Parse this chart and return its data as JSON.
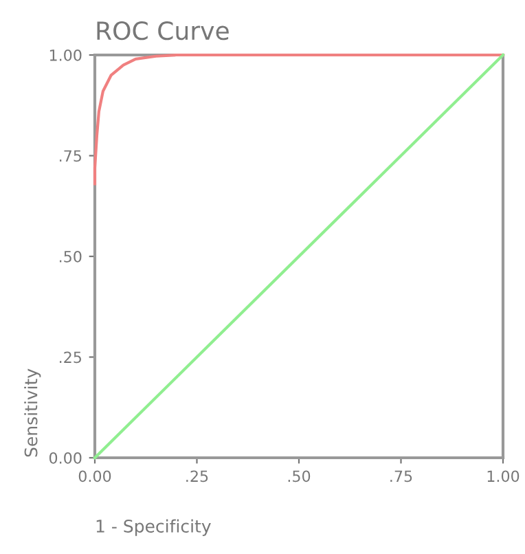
{
  "chart_data": {
    "type": "line",
    "title": "ROC Curve",
    "xlabel": "1 - Specificity",
    "ylabel": "Sensitivity",
    "series": [
      {
        "color": "#f08080",
        "x": [
          0,
          0,
          0.005,
          0.01,
          0.02,
          0.04,
          0.07,
          0.1,
          0.15,
          0.2,
          0.4,
          1
        ],
        "values": [
          0.68,
          0.72,
          0.8,
          0.86,
          0.91,
          0.95,
          0.975,
          0.99,
          0.997,
          1,
          1,
          1
        ]
      },
      {
        "color": "#90ee90",
        "x": [
          0,
          1
        ],
        "values": [
          0,
          1
        ]
      }
    ],
    "xlim": [
      0,
      1
    ],
    "ylim": [
      0,
      1
    ],
    "xticks": [
      {
        "value": 0,
        "label": "0.00"
      },
      {
        "value": 0.25,
        "label": ".25"
      },
      {
        "value": 0.5,
        "label": ".50"
      },
      {
        "value": 0.75,
        "label": ".75"
      },
      {
        "value": 1,
        "label": "1.00"
      }
    ],
    "yticks": [
      {
        "value": 0,
        "label": "0.00"
      },
      {
        "value": 0.25,
        "label": ".25"
      },
      {
        "value": 0.5,
        "label": ".50"
      },
      {
        "value": 0.75,
        "label": ".75"
      },
      {
        "value": 1,
        "label": "1.00"
      }
    ],
    "grid": false,
    "legend": false
  }
}
